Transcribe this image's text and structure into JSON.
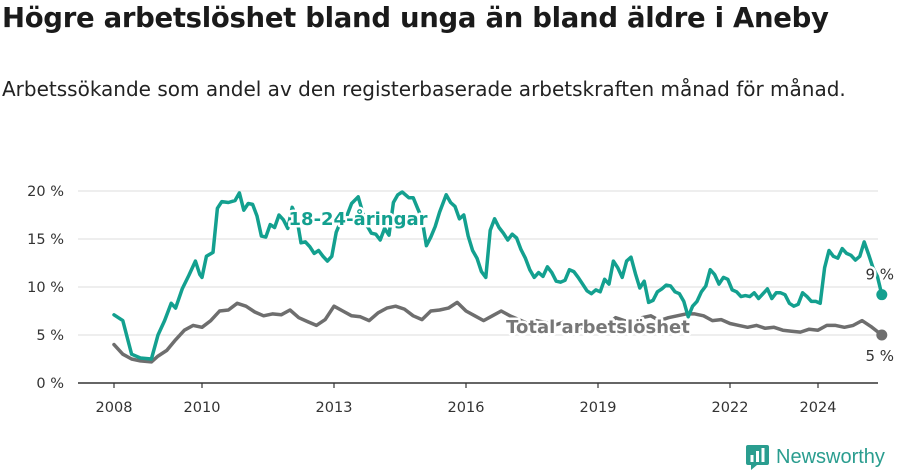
{
  "title": "Högre arbetslöshet bland unga än bland äldre i Aneby",
  "subtitle": "Arbetssökande som andel av den registerbaserade arbetskraften månad för månad.",
  "brand": {
    "name": "Newsworthy",
    "icon": "bar-chart-logo-icon",
    "color": "#2a9d8f"
  },
  "chart_data": {
    "type": "line",
    "title": "Högre arbetslöshet bland unga än bland äldre i Aneby",
    "xlabel": "",
    "ylabel": "",
    "xlim": [
      2007.2,
      2025.5
    ],
    "ylim": [
      0,
      20
    ],
    "x_ticks": [
      2008,
      2010,
      2013,
      2016,
      2019,
      2022,
      2024
    ],
    "x_tick_labels": [
      "2008",
      "2010",
      "2013",
      "2016",
      "2019",
      "2022",
      "2024"
    ],
    "y_ticks": [
      0,
      5,
      10,
      15,
      20
    ],
    "y_tick_labels": [
      "0 %",
      "5 %",
      "10 %",
      "15 %",
      "20 %"
    ],
    "grid": true,
    "series": [
      {
        "name": "18-24-åringar",
        "label": "18-24-åringar",
        "end_label": "9 %",
        "color": "#13a08f",
        "points": [
          [
            2008.0,
            7.1
          ],
          [
            2008.2,
            6.5
          ],
          [
            2008.4,
            3.0
          ],
          [
            2008.6,
            2.6
          ],
          [
            2008.85,
            2.5
          ],
          [
            2009.0,
            5.0
          ],
          [
            2009.15,
            6.5
          ],
          [
            2009.3,
            8.3
          ],
          [
            2009.4,
            7.8
          ],
          [
            2009.55,
            9.8
          ],
          [
            2009.7,
            11.2
          ],
          [
            2009.85,
            12.7
          ],
          [
            2009.95,
            11.3
          ],
          [
            2010.0,
            11.0
          ],
          [
            2010.1,
            13.2
          ],
          [
            2010.25,
            13.6
          ],
          [
            2010.35,
            18.2
          ],
          [
            2010.45,
            18.9
          ],
          [
            2010.6,
            18.8
          ],
          [
            2010.75,
            19.0
          ],
          [
            2010.85,
            19.8
          ],
          [
            2010.95,
            18.0
          ],
          [
            2011.05,
            18.7
          ],
          [
            2011.15,
            18.6
          ],
          [
            2011.25,
            17.4
          ],
          [
            2011.35,
            15.3
          ],
          [
            2011.45,
            15.2
          ],
          [
            2011.55,
            16.5
          ],
          [
            2011.65,
            16.2
          ],
          [
            2011.75,
            17.5
          ],
          [
            2011.85,
            17.0
          ],
          [
            2011.95,
            16.1
          ],
          [
            2012.05,
            18.3
          ],
          [
            2012.15,
            17.3
          ],
          [
            2012.25,
            14.6
          ],
          [
            2012.35,
            14.7
          ],
          [
            2012.45,
            14.2
          ],
          [
            2012.55,
            13.5
          ],
          [
            2012.65,
            13.8
          ],
          [
            2012.75,
            13.2
          ],
          [
            2012.85,
            12.7
          ],
          [
            2012.95,
            13.2
          ],
          [
            2013.05,
            15.7
          ],
          [
            2013.15,
            16.8
          ],
          [
            2013.3,
            17.5
          ],
          [
            2013.4,
            18.7
          ],
          [
            2013.55,
            19.4
          ],
          [
            2013.65,
            17.8
          ],
          [
            2013.75,
            16.4
          ],
          [
            2013.85,
            15.6
          ],
          [
            2013.95,
            15.5
          ],
          [
            2014.05,
            14.9
          ],
          [
            2014.15,
            16.1
          ],
          [
            2014.25,
            15.4
          ],
          [
            2014.35,
            18.8
          ],
          [
            2014.45,
            19.6
          ],
          [
            2014.55,
            19.9
          ],
          [
            2014.7,
            19.3
          ],
          [
            2014.8,
            19.3
          ],
          [
            2014.9,
            18.2
          ],
          [
            2015.0,
            17.1
          ],
          [
            2015.1,
            14.3
          ],
          [
            2015.2,
            15.2
          ],
          [
            2015.3,
            16.3
          ],
          [
            2015.4,
            17.8
          ],
          [
            2015.55,
            19.6
          ],
          [
            2015.65,
            18.8
          ],
          [
            2015.75,
            18.4
          ],
          [
            2015.85,
            17.1
          ],
          [
            2015.95,
            17.5
          ],
          [
            2016.05,
            15.3
          ],
          [
            2016.15,
            13.8
          ],
          [
            2016.25,
            13.0
          ],
          [
            2016.35,
            11.6
          ],
          [
            2016.45,
            11.0
          ],
          [
            2016.55,
            15.9
          ],
          [
            2016.65,
            17.1
          ],
          [
            2016.75,
            16.2
          ],
          [
            2016.85,
            15.6
          ],
          [
            2016.95,
            14.9
          ],
          [
            2017.05,
            15.5
          ],
          [
            2017.15,
            15.1
          ],
          [
            2017.25,
            13.9
          ],
          [
            2017.35,
            13.0
          ],
          [
            2017.45,
            11.8
          ],
          [
            2017.55,
            11.0
          ],
          [
            2017.65,
            11.5
          ],
          [
            2017.75,
            11.1
          ],
          [
            2017.85,
            12.1
          ],
          [
            2017.95,
            11.5
          ],
          [
            2018.05,
            10.6
          ],
          [
            2018.15,
            10.5
          ],
          [
            2018.25,
            10.7
          ],
          [
            2018.35,
            11.8
          ],
          [
            2018.45,
            11.6
          ],
          [
            2018.55,
            11.0
          ],
          [
            2018.65,
            10.3
          ],
          [
            2018.75,
            9.6
          ],
          [
            2018.85,
            9.3
          ],
          [
            2018.95,
            9.7
          ],
          [
            2019.05,
            9.5
          ],
          [
            2019.15,
            10.8
          ],
          [
            2019.25,
            10.3
          ],
          [
            2019.35,
            12.7
          ],
          [
            2019.45,
            12.0
          ],
          [
            2019.55,
            11.0
          ],
          [
            2019.65,
            12.7
          ],
          [
            2019.75,
            13.1
          ],
          [
            2019.85,
            11.4
          ],
          [
            2019.95,
            9.9
          ],
          [
            2020.05,
            10.6
          ],
          [
            2020.15,
            8.4
          ],
          [
            2020.25,
            8.6
          ],
          [
            2020.35,
            9.5
          ],
          [
            2020.45,
            9.8
          ],
          [
            2020.55,
            10.2
          ],
          [
            2020.65,
            10.1
          ],
          [
            2020.75,
            9.5
          ],
          [
            2020.85,
            9.3
          ],
          [
            2020.95,
            8.5
          ],
          [
            2021.05,
            6.9
          ],
          [
            2021.15,
            8.0
          ],
          [
            2021.25,
            8.5
          ],
          [
            2021.35,
            9.5
          ],
          [
            2021.45,
            10.1
          ],
          [
            2021.55,
            11.8
          ],
          [
            2021.65,
            11.3
          ],
          [
            2021.75,
            10.3
          ],
          [
            2021.85,
            11.0
          ],
          [
            2021.95,
            10.8
          ],
          [
            2022.05,
            9.7
          ],
          [
            2022.15,
            9.5
          ],
          [
            2022.25,
            9.0
          ],
          [
            2022.35,
            9.1
          ],
          [
            2022.45,
            9.0
          ],
          [
            2022.55,
            9.4
          ],
          [
            2022.65,
            8.8
          ],
          [
            2022.75,
            9.3
          ],
          [
            2022.85,
            9.8
          ],
          [
            2022.95,
            8.8
          ],
          [
            2023.05,
            9.4
          ],
          [
            2023.15,
            9.4
          ],
          [
            2023.25,
            9.2
          ],
          [
            2023.35,
            8.3
          ],
          [
            2023.45,
            8.0
          ],
          [
            2023.55,
            8.2
          ],
          [
            2023.65,
            9.4
          ],
          [
            2023.75,
            9.0
          ],
          [
            2023.85,
            8.5
          ],
          [
            2023.95,
            8.5
          ],
          [
            2024.05,
            8.3
          ],
          [
            2024.15,
            12.0
          ],
          [
            2024.25,
            13.8
          ],
          [
            2024.35,
            13.2
          ],
          [
            2024.45,
            13.0
          ],
          [
            2024.55,
            14.0
          ],
          [
            2024.65,
            13.5
          ],
          [
            2024.75,
            13.3
          ],
          [
            2024.85,
            12.8
          ],
          [
            2024.95,
            13.2
          ],
          [
            2025.05,
            14.7
          ],
          [
            2025.15,
            13.4
          ],
          [
            2025.25,
            12.0
          ],
          [
            2025.35,
            11.1
          ],
          [
            2025.45,
            9.2
          ]
        ]
      },
      {
        "name": "Total arbetslöshet",
        "label": "Total arbetslöshet",
        "end_label": "5 %",
        "color": "#6e6e6e",
        "points": [
          [
            2008.0,
            4.0
          ],
          [
            2008.2,
            3.0
          ],
          [
            2008.4,
            2.5
          ],
          [
            2008.6,
            2.3
          ],
          [
            2008.85,
            2.2
          ],
          [
            2009.0,
            2.8
          ],
          [
            2009.2,
            3.4
          ],
          [
            2009.4,
            4.5
          ],
          [
            2009.6,
            5.5
          ],
          [
            2009.8,
            6.0
          ],
          [
            2010.0,
            5.8
          ],
          [
            2010.2,
            6.5
          ],
          [
            2010.4,
            7.5
          ],
          [
            2010.6,
            7.6
          ],
          [
            2010.8,
            8.3
          ],
          [
            2011.0,
            8.0
          ],
          [
            2011.2,
            7.4
          ],
          [
            2011.4,
            7.0
          ],
          [
            2011.6,
            7.2
          ],
          [
            2011.8,
            7.1
          ],
          [
            2012.0,
            7.6
          ],
          [
            2012.2,
            6.8
          ],
          [
            2012.4,
            6.4
          ],
          [
            2012.6,
            6.0
          ],
          [
            2012.8,
            6.6
          ],
          [
            2013.0,
            8.0
          ],
          [
            2013.2,
            7.5
          ],
          [
            2013.4,
            7.0
          ],
          [
            2013.6,
            6.9
          ],
          [
            2013.8,
            6.5
          ],
          [
            2014.0,
            7.3
          ],
          [
            2014.2,
            7.8
          ],
          [
            2014.4,
            8.0
          ],
          [
            2014.6,
            7.7
          ],
          [
            2014.8,
            7.0
          ],
          [
            2015.0,
            6.6
          ],
          [
            2015.2,
            7.5
          ],
          [
            2015.4,
            7.6
          ],
          [
            2015.6,
            7.8
          ],
          [
            2015.8,
            8.4
          ],
          [
            2016.0,
            7.5
          ],
          [
            2016.2,
            7.0
          ],
          [
            2016.4,
            6.5
          ],
          [
            2016.6,
            7.0
          ],
          [
            2016.8,
            7.5
          ],
          [
            2017.0,
            7.0
          ],
          [
            2017.2,
            6.6
          ],
          [
            2017.4,
            6.2
          ],
          [
            2017.6,
            6.5
          ],
          [
            2017.8,
            6.3
          ],
          [
            2018.0,
            6.0
          ],
          [
            2018.2,
            6.3
          ],
          [
            2018.4,
            6.0
          ],
          [
            2018.6,
            5.8
          ],
          [
            2018.8,
            5.5
          ],
          [
            2019.0,
            5.8
          ],
          [
            2019.2,
            6.0
          ],
          [
            2019.4,
            6.8
          ],
          [
            2019.6,
            6.5
          ],
          [
            2019.8,
            6.2
          ],
          [
            2020.0,
            6.8
          ],
          [
            2020.2,
            7.0
          ],
          [
            2020.4,
            6.5
          ],
          [
            2020.6,
            6.8
          ],
          [
            2020.8,
            7.0
          ],
          [
            2021.0,
            7.2
          ],
          [
            2021.2,
            7.2
          ],
          [
            2021.4,
            7.0
          ],
          [
            2021.6,
            6.5
          ],
          [
            2021.8,
            6.6
          ],
          [
            2022.0,
            6.2
          ],
          [
            2022.2,
            6.0
          ],
          [
            2022.4,
            5.8
          ],
          [
            2022.6,
            6.0
          ],
          [
            2022.8,
            5.7
          ],
          [
            2023.0,
            5.8
          ],
          [
            2023.2,
            5.5
          ],
          [
            2023.4,
            5.4
          ],
          [
            2023.6,
            5.3
          ],
          [
            2023.8,
            5.6
          ],
          [
            2024.0,
            5.5
          ],
          [
            2024.2,
            6.0
          ],
          [
            2024.4,
            6.0
          ],
          [
            2024.6,
            5.8
          ],
          [
            2024.8,
            6.0
          ],
          [
            2025.0,
            6.5
          ],
          [
            2025.2,
            5.9
          ],
          [
            2025.45,
            5.0
          ]
        ]
      }
    ]
  }
}
